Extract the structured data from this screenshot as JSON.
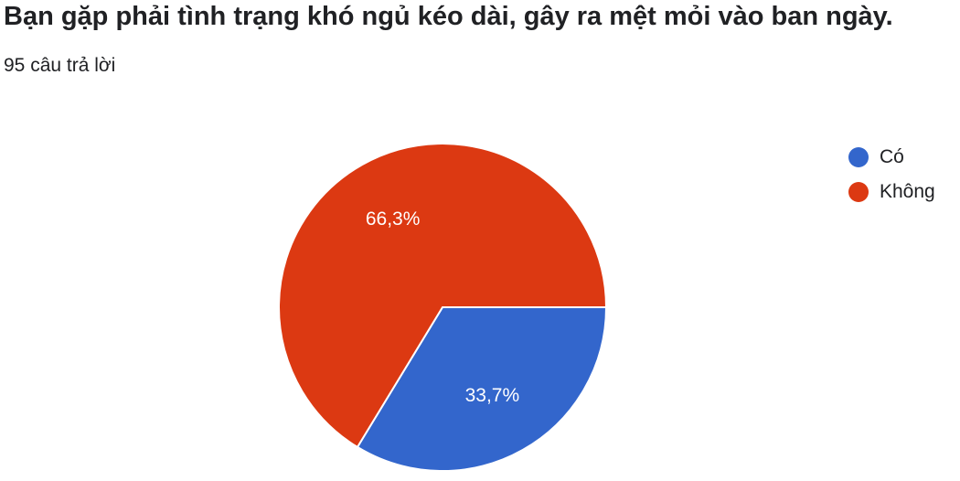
{
  "header": {
    "title": "Bạn gặp phải tình trạng khó ngủ kéo dài, gây ra mệt mỏi vào ban ngày.",
    "response_count": "95 câu trả lời"
  },
  "chart_data": {
    "type": "pie",
    "title": "Bạn gặp phải tình trạng khó ngủ kéo dài, gây ra mệt mỏi vào ban ngày.",
    "subtitle": "95 câu trả lời",
    "legend_position": "right",
    "slices": [
      {
        "name": "Có",
        "value": 33.7,
        "label": "33,7%",
        "color": "#3366cc"
      },
      {
        "name": "Không",
        "value": 66.3,
        "label": "66,3%",
        "color": "#dc3912"
      }
    ]
  }
}
